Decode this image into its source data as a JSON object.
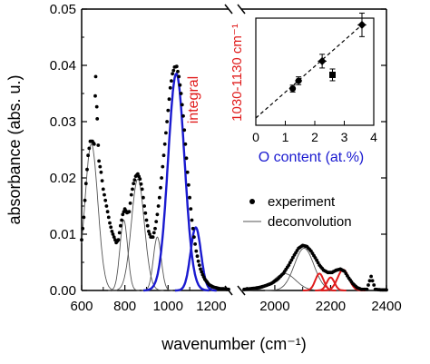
{
  "chart_data": {
    "type": "line",
    "xlabel": "wavenumber (cm⁻¹)",
    "ylabel": "absorbance (abs. u.)",
    "ylim": [
      0,
      0.05
    ],
    "yticks": [
      "0.00",
      "0.01",
      "0.02",
      "0.03",
      "0.04",
      "0.05"
    ],
    "xtick_labels_left": [
      "600",
      "800",
      "1000",
      "1200"
    ],
    "xtick_labels_right": [
      "2000",
      "2200",
      "2400"
    ],
    "x_break": {
      "left_range": [
        600,
        1280
      ],
      "right_range": [
        1880,
        2400
      ]
    },
    "legend": {
      "position": "bottom-right",
      "entries": [
        {
          "label": "experiment",
          "style": "dots"
        },
        {
          "label": "deconvolution",
          "style": "thin-line"
        }
      ]
    },
    "annotations": {
      "integral_label": "integral"
    },
    "colors": {
      "experiment": "#000000",
      "deconvolution": "#505050",
      "blue_band": "#1a1ad0",
      "red_band": "#e01b1b",
      "inset_axis_label": "#e01b1b",
      "inset_xlabel": "#1a1ad0"
    },
    "experiment": {
      "left": [
        [
          600,
          0.009
        ],
        [
          610,
          0.013
        ],
        [
          620,
          0.019
        ],
        [
          630,
          0.024
        ],
        [
          640,
          0.0265
        ],
        [
          650,
          0.0265
        ],
        [
          658,
          0.026
        ],
        [
          665,
          0.038
        ],
        [
          672,
          0.0305
        ],
        [
          680,
          0.023
        ],
        [
          690,
          0.021
        ],
        [
          700,
          0.018
        ],
        [
          710,
          0.016
        ],
        [
          720,
          0.014
        ],
        [
          730,
          0.012
        ],
        [
          740,
          0.0105
        ],
        [
          750,
          0.0095
        ],
        [
          760,
          0.0085
        ],
        [
          770,
          0.009
        ],
        [
          780,
          0.0115
        ],
        [
          790,
          0.0135
        ],
        [
          800,
          0.0145
        ],
        [
          810,
          0.0138
        ],
        [
          820,
          0.014
        ],
        [
          830,
          0.017
        ],
        [
          840,
          0.019
        ],
        [
          850,
          0.0203
        ],
        [
          860,
          0.0207
        ],
        [
          870,
          0.0198
        ],
        [
          880,
          0.018
        ],
        [
          890,
          0.015
        ],
        [
          900,
          0.0125
        ],
        [
          910,
          0.0105
        ],
        [
          920,
          0.0095
        ],
        [
          930,
          0.0095
        ],
        [
          940,
          0.011
        ],
        [
          950,
          0.0135
        ],
        [
          960,
          0.0165
        ],
        [
          970,
          0.02
        ],
        [
          980,
          0.024
        ],
        [
          990,
          0.028
        ],
        [
          1000,
          0.032
        ],
        [
          1010,
          0.036
        ],
        [
          1020,
          0.0385
        ],
        [
          1030,
          0.0397
        ],
        [
          1040,
          0.0398
        ],
        [
          1050,
          0.038
        ],
        [
          1060,
          0.035
        ],
        [
          1070,
          0.031
        ],
        [
          1080,
          0.026
        ],
        [
          1090,
          0.021
        ],
        [
          1100,
          0.0165
        ],
        [
          1110,
          0.0125
        ],
        [
          1120,
          0.0095
        ],
        [
          1130,
          0.007
        ],
        [
          1140,
          0.0052
        ],
        [
          1150,
          0.0038
        ],
        [
          1160,
          0.0028
        ],
        [
          1170,
          0.002
        ],
        [
          1180,
          0.0015
        ],
        [
          1190,
          0.001
        ],
        [
          1200,
          0.0008
        ],
        [
          1210,
          0.0006
        ],
        [
          1220,
          0.0005
        ],
        [
          1230,
          0.0004
        ],
        [
          1240,
          0.0003
        ],
        [
          1250,
          0.0003
        ],
        [
          1260,
          0.0003
        ],
        [
          1270,
          0.0002
        ],
        [
          1280,
          0.0002
        ]
      ],
      "right": [
        [
          1890,
          0.0002
        ],
        [
          1910,
          0.0003
        ],
        [
          1930,
          0.0004
        ],
        [
          1950,
          0.0006
        ],
        [
          1970,
          0.0009
        ],
        [
          1990,
          0.0013
        ],
        [
          2010,
          0.002
        ],
        [
          2030,
          0.003
        ],
        [
          2050,
          0.0045
        ],
        [
          2070,
          0.0063
        ],
        [
          2085,
          0.0075
        ],
        [
          2100,
          0.008
        ],
        [
          2115,
          0.0078
        ],
        [
          2130,
          0.007
        ],
        [
          2145,
          0.0058
        ],
        [
          2160,
          0.0045
        ],
        [
          2175,
          0.0036
        ],
        [
          2190,
          0.0032
        ],
        [
          2205,
          0.0032
        ],
        [
          2220,
          0.0036
        ],
        [
          2235,
          0.0038
        ],
        [
          2250,
          0.0034
        ],
        [
          2265,
          0.0022
        ],
        [
          2280,
          0.0012
        ],
        [
          2295,
          0.0005
        ],
        [
          2310,
          0.0002
        ],
        [
          2330,
          0.0002
        ],
        [
          2345,
          0.0025
        ],
        [
          2360,
          0.0002
        ],
        [
          2380,
          0.0001
        ],
        [
          2400,
          0.0001
        ]
      ]
    },
    "bands": [
      {
        "color": "black",
        "center": 645,
        "amplitude": 0.026,
        "width": 30
      },
      {
        "color": "black",
        "center": 795,
        "amplitude": 0.0125,
        "width": 18
      },
      {
        "color": "black",
        "center": 860,
        "amplitude": 0.0198,
        "width": 30
      },
      {
        "color": "black",
        "center": 950,
        "amplitude": 0.0095,
        "width": 18
      },
      {
        "color": "blue",
        "center": 1038,
        "amplitude": 0.0385,
        "width": 38
      },
      {
        "color": "blue",
        "center": 1128,
        "amplitude": 0.0112,
        "width": 24
      },
      {
        "color": "black",
        "center": 2035,
        "amplitude": 0.003,
        "width": 40
      },
      {
        "color": "black",
        "center": 2105,
        "amplitude": 0.0075,
        "width": 35
      },
      {
        "color": "red",
        "center": 2160,
        "amplitude": 0.003,
        "width": 15
      },
      {
        "color": "red",
        "center": 2200,
        "amplitude": 0.0023,
        "width": 14
      },
      {
        "color": "red",
        "center": 2245,
        "amplitude": 0.0037,
        "width": 20
      }
    ],
    "inset": {
      "type": "scatter",
      "xlabel": "O content (at.%)",
      "ylabel": "1030-1130 cm⁻¹",
      "xlim": [
        0,
        4
      ],
      "xticks": [
        "0",
        "1",
        "2",
        "3",
        "4"
      ],
      "points": [
        {
          "x": 1.25,
          "y": 0.3,
          "xerr": 0.1,
          "yerr": 0.035,
          "marker": "circle"
        },
        {
          "x": 1.45,
          "y": 0.38,
          "xerr": 0.12,
          "yerr": 0.04,
          "marker": "circle"
        },
        {
          "x": 2.25,
          "y": 0.58,
          "xerr": 0.15,
          "yerr": 0.07,
          "marker": "diamond"
        },
        {
          "x": 2.6,
          "y": 0.44,
          "xerr": 0.1,
          "yerr": 0.06,
          "marker": "square"
        },
        {
          "x": 3.6,
          "y": 0.95,
          "xerr": 0.15,
          "yerr": 0.12,
          "marker": "diamond"
        }
      ],
      "fit_line": [
        [
          0,
          0.0
        ],
        [
          3.6,
          0.95
        ]
      ]
    }
  }
}
